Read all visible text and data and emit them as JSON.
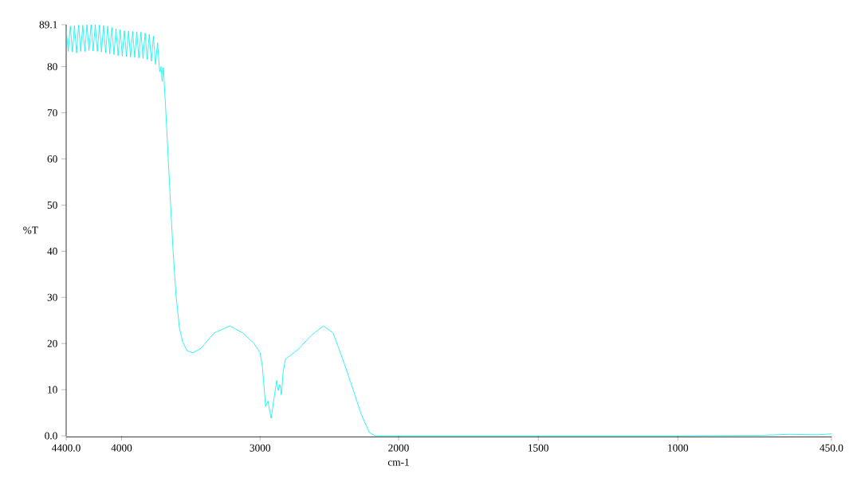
{
  "chart_data": [
    {
      "type": "line",
      "xlabel": "cm-1",
      "ylabel": "%T",
      "color": "#00f0f0",
      "xlim": [
        4400,
        2000
      ],
      "ylim": [
        0,
        89.1
      ],
      "xticks": [
        {
          "value": 4400,
          "label": "4400.0"
        },
        4000,
        3000,
        2000
      ],
      "yticks": [
        {
          "value": 0,
          "label": "0.0"
        },
        10,
        20,
        30,
        40,
        50,
        60,
        70,
        80,
        89.1
      ],
      "x": [
        4400,
        4385,
        4370,
        4355,
        4340,
        4325,
        4310,
        4295,
        4280,
        4265,
        4250,
        4235,
        4220,
        4205,
        4190,
        4175,
        4160,
        4145,
        4130,
        4115,
        4100,
        4085,
        4070,
        4055,
        4040,
        4025,
        4010,
        3995,
        3980,
        3965,
        3950,
        3935,
        3920,
        3905,
        3890,
        3875,
        3860,
        3845,
        3830,
        3815,
        3800,
        3785,
        3770,
        3755,
        3740,
        3725,
        3715,
        3707,
        3698,
        3680,
        3663,
        3646,
        3628,
        3606,
        3600,
        3583,
        3560,
        3526,
        3486,
        3429,
        3331,
        3217,
        3126,
        3046,
        3000,
        2983,
        2960,
        2943,
        2920,
        2897,
        2880,
        2869,
        2857,
        2846,
        2834,
        2817,
        2726,
        2629,
        2543,
        2474,
        2440,
        2389,
        2326,
        2269,
        2211,
        2171,
        2100,
        2000
      ],
      "values": [
        88,
        83.3,
        88.8,
        83.2,
        88.9,
        83,
        89,
        83.3,
        89,
        83.3,
        89.1,
        83.5,
        89.1,
        83.4,
        89.1,
        83.3,
        89,
        83.2,
        88.9,
        83,
        88.8,
        82.8,
        88.5,
        82.6,
        88.2,
        82.4,
        88,
        82.3,
        87.8,
        82.2,
        87.7,
        82.1,
        87.6,
        82,
        87.6,
        81.9,
        87.5,
        81.8,
        87.3,
        81.6,
        87,
        81.2,
        86.6,
        80.5,
        85.2,
        78.9,
        80,
        76.8,
        79.8,
        70,
        60,
        50,
        40,
        30,
        28.6,
        23.5,
        20.4,
        18.4,
        18,
        18.9,
        22.3,
        23.8,
        22.3,
        20.1,
        18,
        14.9,
        6.3,
        7.5,
        3.8,
        8.6,
        12,
        9.8,
        11.1,
        8.9,
        13.7,
        16.6,
        18.7,
        21.8,
        23.8,
        22.3,
        19.6,
        15.4,
        9.8,
        4.6,
        0.7,
        0,
        0,
        0
      ]
    },
    {
      "type": "line",
      "color": "#00f0f0",
      "tick_labels": "x",
      "xlim": [
        2000,
        450
      ],
      "ylim": [
        0,
        89.1
      ],
      "xticks": [
        1500,
        1000,
        {
          "value": 450,
          "label": "450.0"
        }
      ],
      "x": [
        2000,
        1500,
        1000,
        700,
        600,
        500,
        450
      ],
      "values": [
        0,
        0,
        0,
        0.1,
        0.3,
        0.2,
        0.4
      ]
    }
  ]
}
